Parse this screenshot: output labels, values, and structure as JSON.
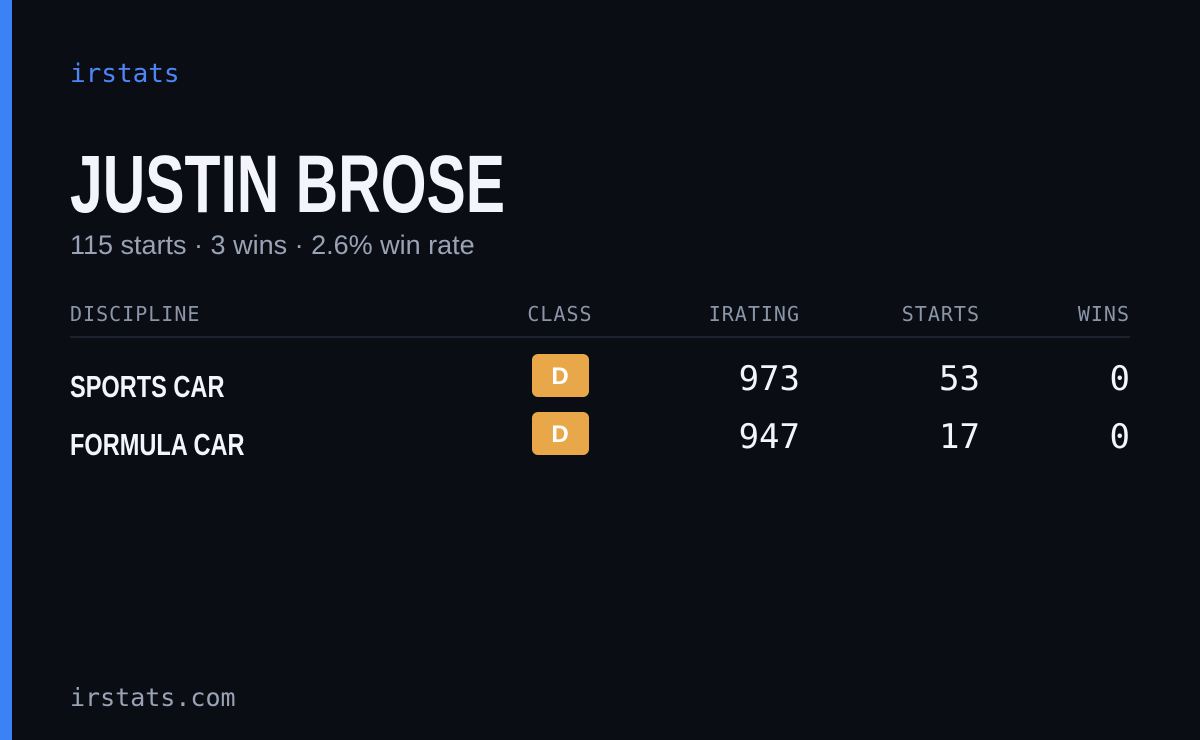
{
  "brand": "irstats",
  "header": {
    "title": "JUSTIN BROSE",
    "subtitle": "115 starts · 3 wins · 2.6% win rate"
  },
  "table": {
    "columns": [
      "DISCIPLINE",
      "CLASS",
      "IRATING",
      "STARTS",
      "WINS"
    ],
    "rows": [
      [
        "SPORTS CAR",
        "D",
        973,
        53,
        0
      ],
      [
        "FORMULA CAR",
        "D",
        947,
        17,
        0
      ]
    ]
  },
  "footer": "irstats.com"
}
